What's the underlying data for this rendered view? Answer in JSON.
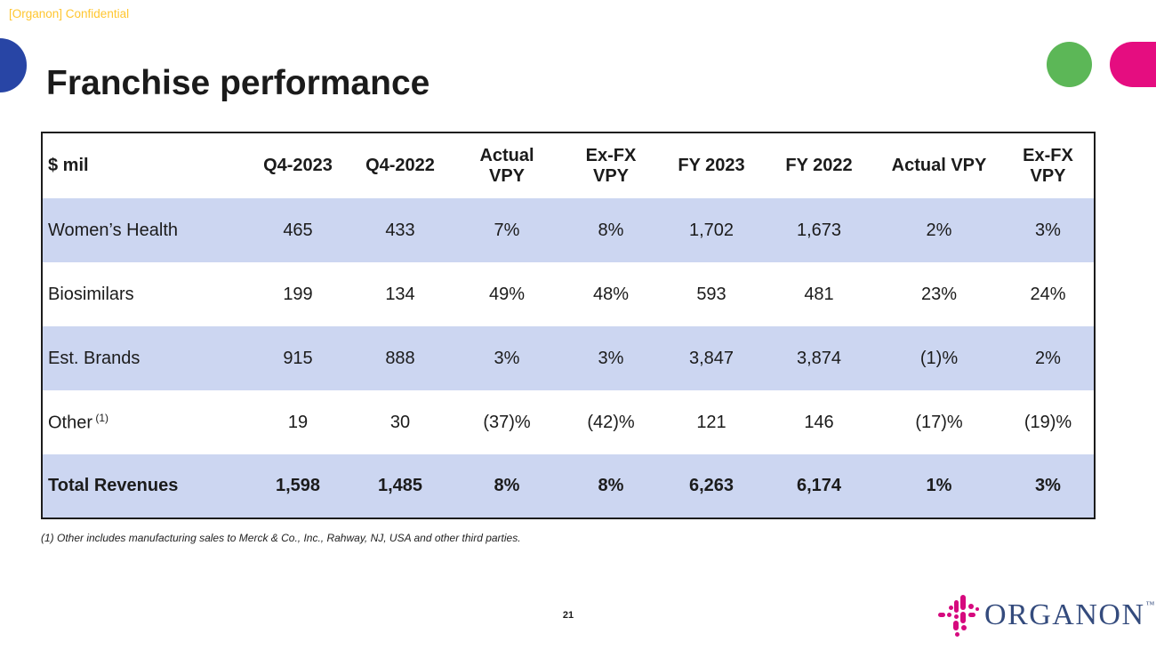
{
  "slide": {
    "confidential": "[Organon] Confidential",
    "title": "Franchise performance",
    "footnote": "(1) Other includes manufacturing sales to Merck & Co., Inc., Rahway, NJ, USA and other third parties.",
    "page_number": "21"
  },
  "colors": {
    "accent_blue": "#2845a5",
    "accent_green": "#5cb757",
    "accent_magenta": "#e50d80",
    "row_band": "#ccd6f1",
    "confidential_yellow": "#ffc630",
    "logo_navy": "#344b7d"
  },
  "table": {
    "unit_label": "$ mil",
    "columns": [
      "Q4-2023",
      "Q4-2022",
      "Actual\nVPY",
      "Ex-FX\nVPY",
      "FY 2023",
      "FY 2022",
      "Actual VPY",
      "Ex-FX\nVPY"
    ],
    "rows": [
      {
        "label": "Women’s Health",
        "sup": "",
        "values": [
          "465",
          "433",
          "7%",
          "8%",
          "1,702",
          "1,673",
          "2%",
          "3%"
        ],
        "band": true,
        "bold": false
      },
      {
        "label": "Biosimilars",
        "sup": "",
        "values": [
          "199",
          "134",
          "49%",
          "48%",
          "593",
          "481",
          "23%",
          "24%"
        ],
        "band": false,
        "bold": false
      },
      {
        "label": "Est. Brands",
        "sup": "",
        "values": [
          "915",
          "888",
          "3%",
          "3%",
          "3,847",
          "3,874",
          "(1)%",
          "2%"
        ],
        "band": true,
        "bold": false
      },
      {
        "label": "Other",
        "sup": "(1)",
        "values": [
          "19",
          "30",
          "(37)%",
          "(42)%",
          "121",
          "146",
          "(17)%",
          "(19)%"
        ],
        "band": false,
        "bold": false
      },
      {
        "label": "Total Revenues",
        "sup": "",
        "values": [
          "1,598",
          "1,485",
          "8%",
          "8%",
          "6,263",
          "6,174",
          "1%",
          "3%"
        ],
        "band": true,
        "bold": true
      }
    ]
  },
  "logo": {
    "wordmark": "ORGANON",
    "trademark": "™"
  }
}
